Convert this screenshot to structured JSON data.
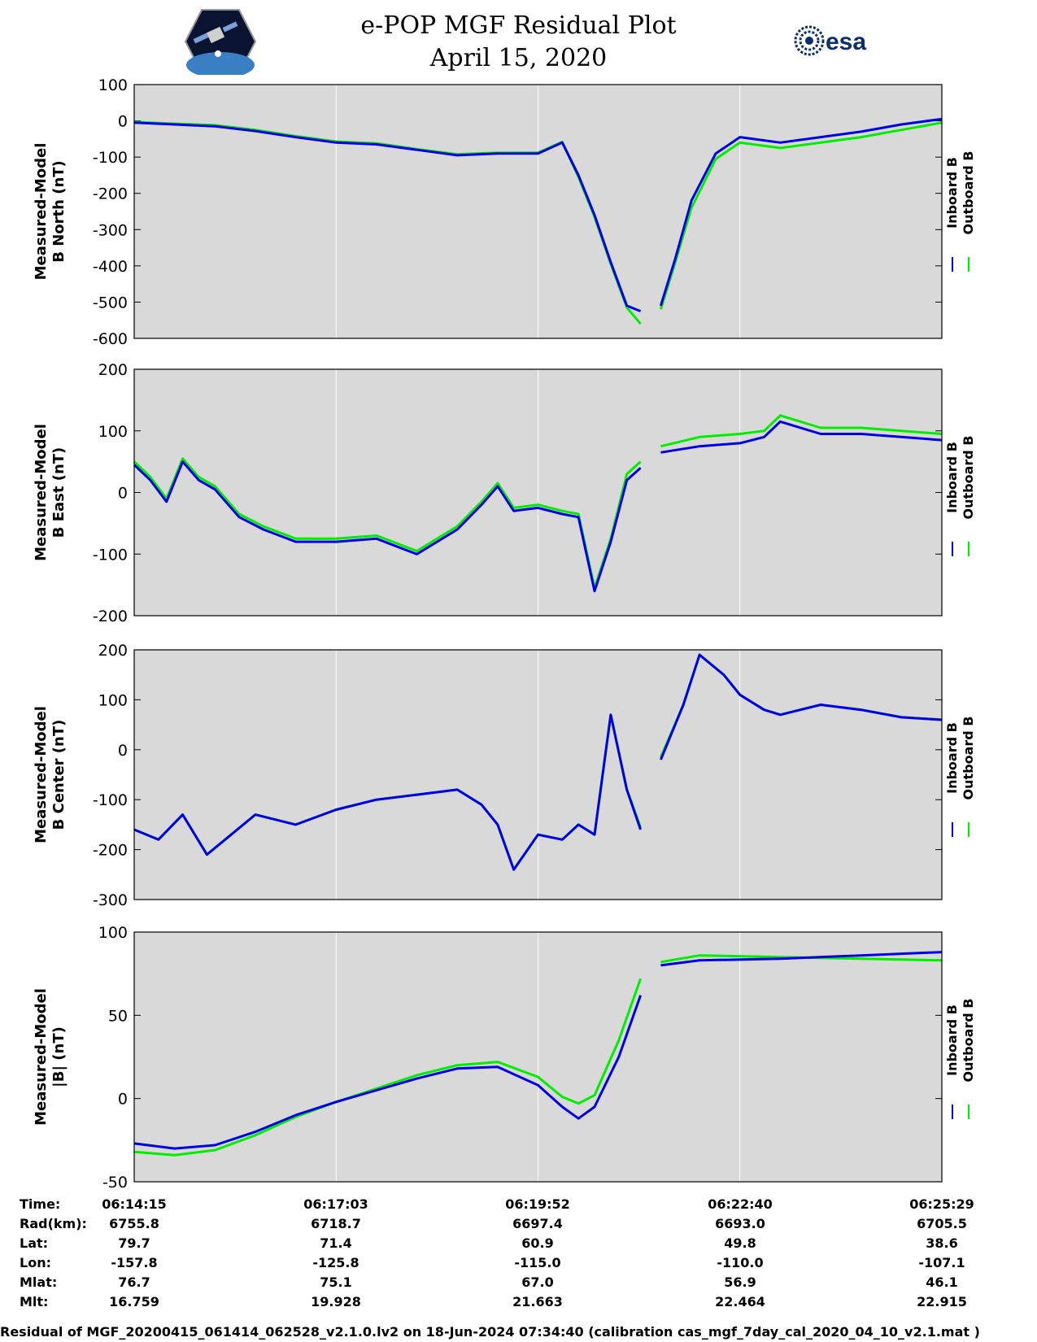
{
  "title_line1": "e-POP MGF Residual Plot",
  "title_line2": "April 15, 2020",
  "logos": {
    "left": "cassiope-mission-logo",
    "right": "esa"
  },
  "colors": {
    "inboard": "#0000e6",
    "outboard": "#00ee00",
    "plot_bg": "#d9d9d9",
    "grid": "#ffffff"
  },
  "chart_data": [
    {
      "type": "line",
      "ylabel_line1": "Measured-Model",
      "ylabel_line2": "B North (nT)",
      "ylim": [
        -600,
        100
      ],
      "yticks": [
        "100",
        "0",
        "-100",
        "-200",
        "-300",
        "-400",
        "-500",
        "-600"
      ],
      "legend": [
        "Inboard B",
        "Outboard B"
      ],
      "series": [
        {
          "name": "Inboard B",
          "x": [
            0.0,
            0.05,
            0.1,
            0.15,
            0.2,
            0.25,
            0.3,
            0.35,
            0.4,
            0.45,
            0.5,
            0.53,
            0.55,
            0.57,
            0.59,
            0.61,
            0.627,
            0.652,
            0.67,
            0.69,
            0.72,
            0.75,
            0.8,
            0.85,
            0.9,
            0.95,
            1.0
          ],
          "y": [
            -5,
            -10,
            -15,
            -28,
            -45,
            -60,
            -65,
            -80,
            -95,
            -90,
            -90,
            -60,
            -150,
            -260,
            -390,
            -510,
            -525,
            -510,
            -380,
            -220,
            -90,
            -45,
            -60,
            -45,
            -30,
            -10,
            5
          ]
        },
        {
          "name": "Outboard B",
          "x": [
            0.0,
            0.05,
            0.1,
            0.15,
            0.2,
            0.25,
            0.3,
            0.35,
            0.4,
            0.45,
            0.5,
            0.53,
            0.55,
            0.57,
            0.59,
            0.61,
            0.627,
            0.652,
            0.67,
            0.69,
            0.72,
            0.75,
            0.8,
            0.85,
            0.9,
            0.95,
            1.0
          ],
          "y": [
            -3,
            -8,
            -12,
            -25,
            -42,
            -57,
            -62,
            -78,
            -92,
            -88,
            -88,
            -58,
            -155,
            -265,
            -395,
            -515,
            -560,
            -520,
            -390,
            -240,
            -105,
            -60,
            -75,
            -60,
            -45,
            -25,
            -5
          ]
        }
      ]
    },
    {
      "type": "line",
      "ylabel_line1": "Measured-Model",
      "ylabel_line2": "B East (nT)",
      "ylim": [
        -200,
        200
      ],
      "yticks": [
        "200",
        "100",
        "0",
        "-100",
        "-200"
      ],
      "legend": [
        "Inboard B",
        "Outboard B"
      ],
      "series": [
        {
          "name": "Inboard B",
          "x": [
            0.0,
            0.02,
            0.04,
            0.06,
            0.08,
            0.1,
            0.13,
            0.16,
            0.2,
            0.25,
            0.3,
            0.35,
            0.4,
            0.43,
            0.45,
            0.47,
            0.5,
            0.53,
            0.55,
            0.57,
            0.59,
            0.61,
            0.627,
            0.652,
            0.7,
            0.75,
            0.78,
            0.8,
            0.85,
            0.9,
            0.95,
            1.0
          ],
          "y": [
            45,
            20,
            -15,
            50,
            20,
            5,
            -40,
            -60,
            -80,
            -80,
            -75,
            -100,
            -60,
            -20,
            10,
            -30,
            -25,
            -35,
            -40,
            -160,
            -80,
            20,
            40,
            65,
            75,
            80,
            90,
            115,
            95,
            95,
            90,
            85
          ]
        },
        {
          "name": "Outboard B",
          "x": [
            0.0,
            0.02,
            0.04,
            0.06,
            0.08,
            0.1,
            0.13,
            0.16,
            0.2,
            0.25,
            0.3,
            0.35,
            0.4,
            0.43,
            0.45,
            0.47,
            0.5,
            0.53,
            0.55,
            0.57,
            0.59,
            0.61,
            0.627,
            0.652,
            0.7,
            0.75,
            0.78,
            0.8,
            0.85,
            0.9,
            0.95,
            1.0
          ],
          "y": [
            50,
            25,
            -10,
            55,
            25,
            10,
            -35,
            -55,
            -75,
            -75,
            -70,
            -95,
            -55,
            -15,
            15,
            -25,
            -20,
            -30,
            -35,
            -155,
            -75,
            30,
            50,
            75,
            90,
            95,
            100,
            125,
            105,
            105,
            100,
            95
          ]
        }
      ]
    },
    {
      "type": "line",
      "ylabel_line1": "Measured-Model",
      "ylabel_line2": "B Center (nT)",
      "ylim": [
        -300,
        200
      ],
      "yticks": [
        "200",
        "100",
        "0",
        "-100",
        "-200",
        "-300"
      ],
      "legend": [
        "Inboard B",
        "Outboard B"
      ],
      "series": [
        {
          "name": "Inboard B",
          "x": [
            0.0,
            0.03,
            0.06,
            0.09,
            0.12,
            0.15,
            0.2,
            0.25,
            0.3,
            0.35,
            0.4,
            0.43,
            0.45,
            0.47,
            0.5,
            0.53,
            0.55,
            0.57,
            0.59,
            0.61,
            0.627,
            0.652,
            0.68,
            0.7,
            0.73,
            0.75,
            0.78,
            0.8,
            0.85,
            0.9,
            0.95,
            1.0
          ],
          "y": [
            -160,
            -180,
            -130,
            -210,
            -170,
            -130,
            -150,
            -120,
            -100,
            -90,
            -80,
            -110,
            -150,
            -240,
            -170,
            -180,
            -150,
            -170,
            70,
            -80,
            -160,
            -20,
            90,
            190,
            150,
            110,
            80,
            70,
            90,
            80,
            65,
            60
          ]
        },
        {
          "name": "Outboard B",
          "x": [
            0.0,
            0.03,
            0.06,
            0.09,
            0.12,
            0.15,
            0.2,
            0.25,
            0.3,
            0.35,
            0.4,
            0.43,
            0.45,
            0.47,
            0.5,
            0.53,
            0.55,
            0.57,
            0.59,
            0.61,
            0.627,
            0.652,
            0.68,
            0.7,
            0.73,
            0.75,
            0.78,
            0.8,
            0.85,
            0.9,
            0.95,
            1.0
          ],
          "y": [
            -160,
            -180,
            -130,
            -210,
            -170,
            -130,
            -150,
            -120,
            -100,
            -90,
            -80,
            -110,
            -150,
            -240,
            -170,
            -180,
            -150,
            -170,
            70,
            -80,
            -155,
            -15,
            90,
            190,
            150,
            110,
            80,
            70,
            90,
            80,
            65,
            60
          ]
        }
      ]
    },
    {
      "type": "line",
      "ylabel_line1": "Measured-Model",
      "ylabel_line2": "|B| (nT)",
      "ylim": [
        -50,
        100
      ],
      "yticks": [
        "100",
        "50",
        "0",
        "-50"
      ],
      "legend": [
        "Inboard B",
        "Outboard B"
      ],
      "series": [
        {
          "name": "Inboard B",
          "x": [
            0.0,
            0.05,
            0.1,
            0.15,
            0.2,
            0.25,
            0.3,
            0.35,
            0.4,
            0.45,
            0.5,
            0.53,
            0.55,
            0.57,
            0.6,
            0.627,
            0.652,
            0.7,
            0.8,
            0.9,
            1.0
          ],
          "y": [
            -27,
            -30,
            -28,
            -20,
            -10,
            -2,
            5,
            12,
            18,
            19,
            8,
            -5,
            -12,
            -5,
            25,
            62,
            80,
            83,
            84,
            86,
            88
          ]
        },
        {
          "name": "Outboard B",
          "x": [
            0.0,
            0.05,
            0.1,
            0.15,
            0.2,
            0.25,
            0.3,
            0.35,
            0.4,
            0.45,
            0.5,
            0.53,
            0.55,
            0.57,
            0.6,
            0.627,
            0.652,
            0.7,
            0.8,
            0.9,
            1.0
          ],
          "y": [
            -32,
            -34,
            -31,
            -22,
            -11,
            -2,
            6,
            14,
            20,
            22,
            13,
            1,
            -3,
            2,
            35,
            72,
            82,
            86,
            85,
            84,
            83
          ]
        }
      ]
    }
  ],
  "orbit_table": {
    "row_labels": [
      "Time:",
      "Rad(km):",
      "Lat:",
      "Lon:",
      "Mlat:",
      "Mlt:"
    ],
    "columns": [
      [
        "06:14:15",
        "6755.8",
        "79.7",
        "-157.8",
        "76.7",
        "16.759"
      ],
      [
        "06:17:03",
        "6718.7",
        "71.4",
        "-125.8",
        "75.1",
        "19.928"
      ],
      [
        "06:19:52",
        "6697.4",
        "60.9",
        "-115.0",
        "67.0",
        "21.663"
      ],
      [
        "06:22:40",
        "6693.0",
        "49.8",
        "-110.0",
        "56.9",
        "22.464"
      ],
      [
        "06:25:29",
        "6705.5",
        "38.6",
        "-107.1",
        "46.1",
        "22.915"
      ]
    ]
  },
  "footer": "Residual of MGF_20200415_061414_062528_v2.1.0.lv2 on 18-Jun-2024 07:34:40 (calibration cas_mgf_7day_cal_2020_04_10_v2.1.mat )"
}
